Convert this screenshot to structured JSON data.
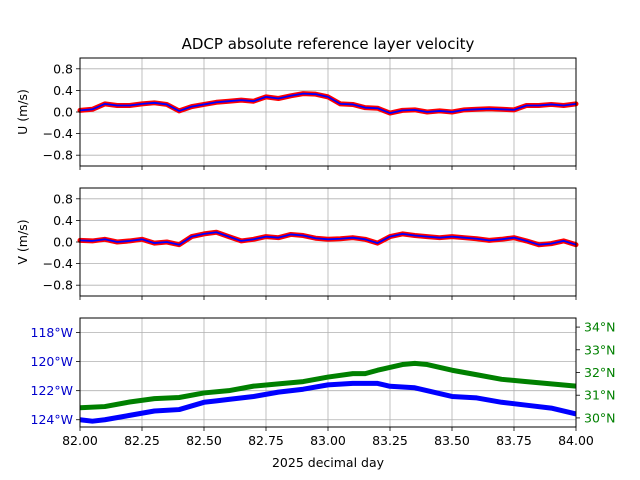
{
  "chart_data": [
    {
      "type": "line",
      "title": "ADCP absolute reference layer velocity",
      "ylabel": "U (m/s)",
      "xlim": [
        82.0,
        84.0
      ],
      "ylim": [
        -1.0,
        1.0
      ],
      "yticks": [
        0.8,
        0.4,
        0.0,
        -0.4,
        -0.8
      ],
      "ytick_labels": [
        "0.8",
        "0.4",
        "0.0",
        "−0.4",
        "−0.8"
      ],
      "grid": true,
      "series": [
        {
          "color": "#ff0000",
          "style": "thick noisy",
          "x": [
            82.0,
            82.05,
            82.1,
            82.15,
            82.2,
            82.25,
            82.3,
            82.35,
            82.4,
            82.45,
            82.5,
            82.55,
            82.6,
            82.65,
            82.7,
            82.75,
            82.8,
            82.85,
            82.9,
            82.95,
            83.0,
            83.05,
            83.1,
            83.15,
            83.2,
            83.25,
            83.3,
            83.35,
            83.4,
            83.45,
            83.5,
            83.55,
            83.6,
            83.65,
            83.7,
            83.75,
            83.8,
            83.85,
            83.9,
            83.95,
            84.0
          ],
          "values": [
            0.03,
            0.05,
            0.15,
            0.12,
            0.12,
            0.15,
            0.17,
            0.14,
            0.02,
            0.1,
            0.14,
            0.18,
            0.2,
            0.22,
            0.2,
            0.28,
            0.25,
            0.3,
            0.34,
            0.33,
            0.28,
            0.15,
            0.14,
            0.08,
            0.07,
            -0.02,
            0.03,
            0.04,
            0.0,
            0.02,
            0.0,
            0.04,
            0.05,
            0.06,
            0.05,
            0.04,
            0.12,
            0.12,
            0.14,
            0.12,
            0.15
          ]
        },
        {
          "color": "#0000ff",
          "style": "line",
          "x": [
            82.0,
            82.05,
            82.1,
            82.15,
            82.2,
            82.25,
            82.3,
            82.35,
            82.4,
            82.45,
            82.5,
            82.55,
            82.6,
            82.65,
            82.7,
            82.75,
            82.8,
            82.85,
            82.9,
            82.95,
            83.0,
            83.05,
            83.1,
            83.15,
            83.2,
            83.25,
            83.3,
            83.35,
            83.4,
            83.45,
            83.5,
            83.55,
            83.6,
            83.65,
            83.7,
            83.75,
            83.8,
            83.85,
            83.9,
            83.95,
            84.0
          ],
          "values": [
            0.03,
            0.05,
            0.15,
            0.12,
            0.12,
            0.15,
            0.17,
            0.14,
            0.02,
            0.1,
            0.14,
            0.18,
            0.2,
            0.22,
            0.2,
            0.28,
            0.25,
            0.3,
            0.34,
            0.33,
            0.28,
            0.15,
            0.14,
            0.08,
            0.07,
            -0.02,
            0.03,
            0.04,
            0.0,
            0.02,
            0.0,
            0.04,
            0.05,
            0.06,
            0.05,
            0.04,
            0.12,
            0.12,
            0.14,
            0.12,
            0.15
          ]
        }
      ]
    },
    {
      "type": "line",
      "ylabel": "V (m/s)",
      "xlim": [
        82.0,
        84.0
      ],
      "ylim": [
        -1.0,
        1.0
      ],
      "yticks": [
        0.8,
        0.4,
        0.0,
        -0.4,
        -0.8
      ],
      "ytick_labels": [
        "0.8",
        "0.4",
        "0.0",
        "−0.4",
        "−0.8"
      ],
      "grid": true,
      "series": [
        {
          "color": "#ff0000",
          "style": "thick noisy",
          "x": [
            82.0,
            82.05,
            82.1,
            82.15,
            82.2,
            82.25,
            82.3,
            82.35,
            82.4,
            82.45,
            82.5,
            82.55,
            82.6,
            82.65,
            82.7,
            82.75,
            82.8,
            82.85,
            82.9,
            82.95,
            83.0,
            83.05,
            83.1,
            83.15,
            83.2,
            83.25,
            83.3,
            83.35,
            83.4,
            83.45,
            83.5,
            83.55,
            83.6,
            83.65,
            83.7,
            83.75,
            83.8,
            83.85,
            83.9,
            83.95,
            84.0
          ],
          "values": [
            0.03,
            0.02,
            0.05,
            0.0,
            0.02,
            0.05,
            -0.02,
            0.0,
            -0.05,
            0.1,
            0.15,
            0.18,
            0.1,
            0.02,
            0.05,
            0.1,
            0.08,
            0.14,
            0.12,
            0.07,
            0.05,
            0.06,
            0.08,
            0.05,
            -0.02,
            0.1,
            0.15,
            0.12,
            0.1,
            0.08,
            0.1,
            0.08,
            0.06,
            0.03,
            0.05,
            0.08,
            0.02,
            -0.05,
            -0.03,
            0.02,
            -0.05
          ]
        },
        {
          "color": "#0000ff",
          "style": "line",
          "x": [
            82.0,
            82.05,
            82.1,
            82.15,
            82.2,
            82.25,
            82.3,
            82.35,
            82.4,
            82.45,
            82.5,
            82.55,
            82.6,
            82.65,
            82.7,
            82.75,
            82.8,
            82.85,
            82.9,
            82.95,
            83.0,
            83.05,
            83.1,
            83.15,
            83.2,
            83.25,
            83.3,
            83.35,
            83.4,
            83.45,
            83.5,
            83.55,
            83.6,
            83.65,
            83.7,
            83.75,
            83.8,
            83.85,
            83.9,
            83.95,
            84.0
          ],
          "values": [
            0.03,
            0.02,
            0.05,
            0.0,
            0.02,
            0.05,
            -0.02,
            0.0,
            -0.05,
            0.1,
            0.15,
            0.18,
            0.1,
            0.02,
            0.05,
            0.1,
            0.08,
            0.14,
            0.12,
            0.07,
            0.05,
            0.06,
            0.08,
            0.05,
            -0.02,
            0.1,
            0.15,
            0.12,
            0.1,
            0.08,
            0.1,
            0.08,
            0.06,
            0.03,
            0.05,
            0.08,
            0.02,
            -0.05,
            -0.03,
            0.02,
            -0.05
          ]
        }
      ]
    },
    {
      "type": "line",
      "xlabel": "2025 decimal day",
      "xlim": [
        82.0,
        84.0
      ],
      "xticks": [
        82.0,
        82.25,
        82.5,
        82.75,
        83.0,
        83.25,
        83.5,
        83.75,
        84.0
      ],
      "xtick_labels": [
        "82.00",
        "82.25",
        "82.50",
        "82.75",
        "83.00",
        "83.25",
        "83.50",
        "83.75",
        "84.00"
      ],
      "grid": true,
      "left_axis": {
        "color": "#0000cc",
        "ylim": [
          -124.5,
          -117.0
        ],
        "yticks": [
          -118,
          -120,
          -122,
          -124
        ],
        "ytick_labels": [
          "118°W",
          "120°W",
          "122°W",
          "124°W"
        ]
      },
      "right_axis": {
        "color": "#008000",
        "ylim": [
          29.6,
          34.4
        ],
        "yticks": [
          34,
          33,
          32,
          31,
          30
        ],
        "ytick_labels": [
          "34°N",
          "33°N",
          "32°N",
          "31°N",
          "30°N"
        ]
      },
      "series": [
        {
          "axis": "left",
          "color": "#0000ff",
          "x": [
            82.0,
            82.05,
            82.1,
            82.2,
            82.3,
            82.4,
            82.5,
            82.55,
            82.6,
            82.7,
            82.8,
            82.9,
            83.0,
            83.1,
            83.2,
            83.25,
            83.35,
            83.5,
            83.6,
            83.7,
            83.8,
            83.9,
            84.0
          ],
          "values": [
            -124.0,
            -124.1,
            -124.0,
            -123.7,
            -123.4,
            -123.3,
            -122.8,
            -122.7,
            -122.6,
            -122.4,
            -122.1,
            -121.9,
            -121.6,
            -121.5,
            -121.5,
            -121.7,
            -121.8,
            -122.4,
            -122.5,
            -122.8,
            -123.0,
            -123.2,
            -123.6
          ]
        },
        {
          "axis": "right",
          "color": "#008000",
          "x": [
            82.0,
            82.1,
            82.2,
            82.3,
            82.4,
            82.5,
            82.6,
            82.7,
            82.8,
            82.9,
            83.0,
            83.1,
            83.15,
            83.2,
            83.3,
            83.35,
            83.4,
            83.5,
            83.6,
            83.7,
            83.8,
            83.9,
            84.0
          ],
          "values": [
            30.45,
            30.5,
            30.7,
            30.85,
            30.9,
            31.1,
            31.2,
            31.4,
            31.5,
            31.6,
            31.8,
            31.95,
            31.95,
            32.1,
            32.35,
            32.4,
            32.35,
            32.1,
            31.9,
            31.7,
            31.6,
            31.5,
            31.4
          ]
        }
      ]
    }
  ]
}
